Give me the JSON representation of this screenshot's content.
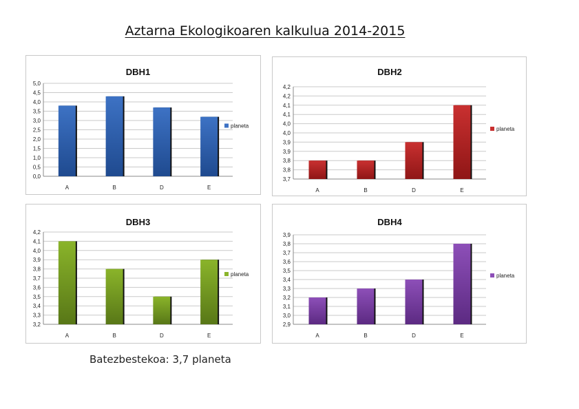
{
  "page": {
    "title": "Aztarna Ekologikoaren kalkulua  2014-2015",
    "average_text": "Batezbestekoa: 3,7 planeta"
  },
  "chart_data": [
    {
      "type": "bar",
      "title": "DBH1",
      "categories": [
        "A",
        "B",
        "D",
        "E"
      ],
      "series": [
        {
          "name": "planeta",
          "values": [
            3.8,
            4.3,
            3.7,
            3.2
          ]
        }
      ],
      "ylim": [
        0,
        5
      ],
      "ystep": 0.5,
      "ytick_labels": [
        "0,0",
        "0,5",
        "1,0",
        "1,5",
        "2,0",
        "2,5",
        "3,0",
        "3,5",
        "4,0",
        "4,5",
        "5,0"
      ],
      "color": "#3d72c4",
      "color_dark": "#1f4a8f",
      "grid": true,
      "legend": "right"
    },
    {
      "type": "bar",
      "title": "DBH2",
      "categories": [
        "A",
        "B",
        "D",
        "E"
      ],
      "series": [
        {
          "name": "planeta",
          "values": [
            3.8,
            3.8,
            3.9,
            4.1
          ]
        }
      ],
      "ylim": [
        3.7,
        4.2
      ],
      "ystep": 0.05,
      "ytick_labels": [
        "3,7",
        "3,8",
        "3,8",
        "3,9",
        "3,9",
        "4,0",
        "4,0",
        "4,1",
        "4,1",
        "4,2",
        "4,2"
      ],
      "color": "#c93030",
      "color_dark": "#8f1616",
      "grid": true,
      "legend": "right"
    },
    {
      "type": "bar",
      "title": "DBH3",
      "categories": [
        "A",
        "B",
        "D",
        "E"
      ],
      "series": [
        {
          "name": "planeta",
          "values": [
            4.1,
            3.8,
            3.5,
            3.9
          ]
        }
      ],
      "ylim": [
        3.2,
        4.2
      ],
      "ystep": 0.1,
      "ytick_labels": [
        "3,2",
        "3,3",
        "3,4",
        "3,5",
        "3,6",
        "3,7",
        "3,8",
        "3,9",
        "4,0",
        "4,1",
        "4,2"
      ],
      "color": "#8ab42a",
      "color_dark": "#587717",
      "grid": true,
      "legend": "right"
    },
    {
      "type": "bar",
      "title": "DBH4",
      "categories": [
        "A",
        "B",
        "D",
        "E"
      ],
      "series": [
        {
          "name": "planeta",
          "values": [
            3.2,
            3.3,
            3.4,
            3.8
          ]
        }
      ],
      "ylim": [
        2.9,
        3.9
      ],
      "ystep": 0.1,
      "ytick_labels": [
        "2,9",
        "3,0",
        "3,1",
        "3,2",
        "3,3",
        "3,4",
        "3,5",
        "3,6",
        "3,7",
        "3,8",
        "3,9"
      ],
      "color": "#8d4fb8",
      "color_dark": "#5c2a82",
      "grid": true,
      "legend": "right"
    }
  ]
}
